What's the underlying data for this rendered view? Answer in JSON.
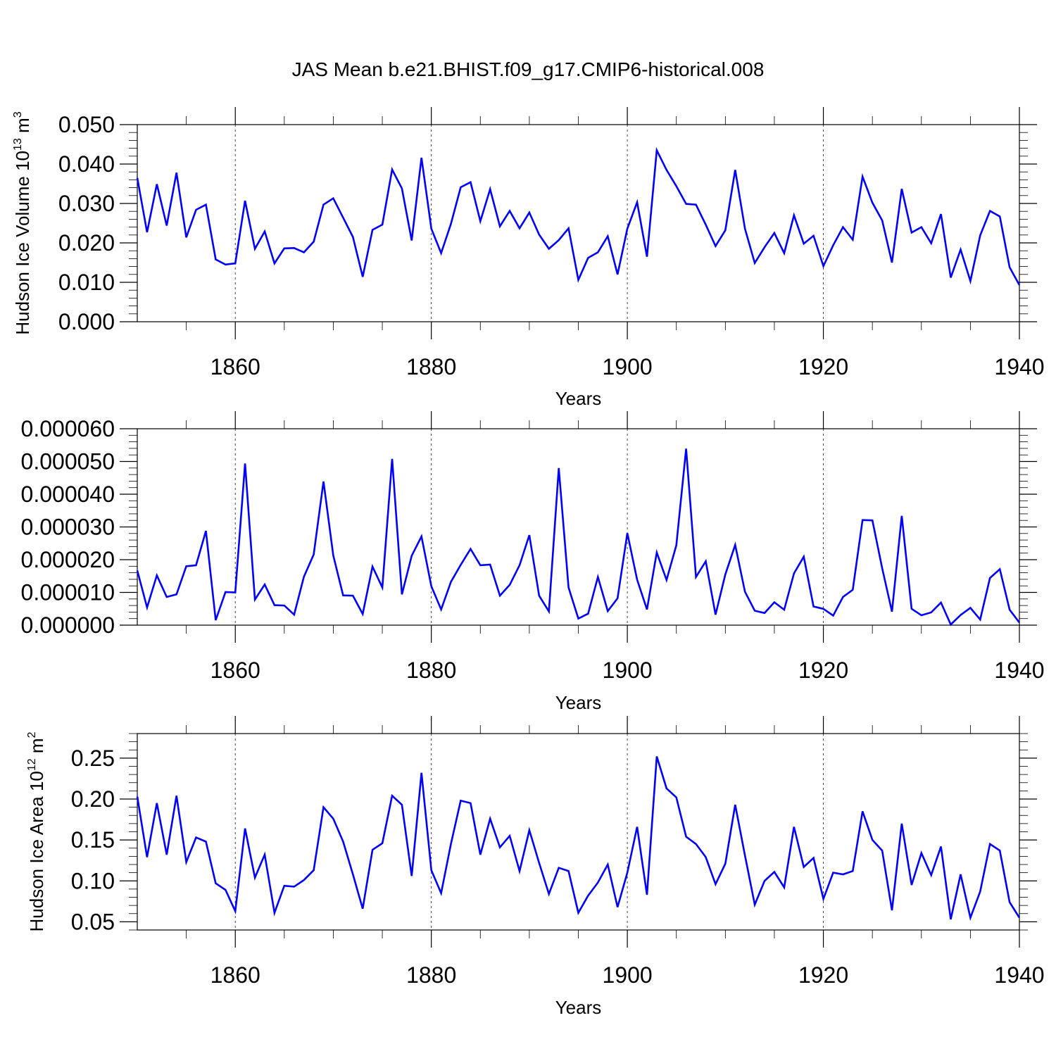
{
  "chart_data": {
    "title": "JAS Mean b.e21.BHIST.f09_g17.CMIP6-historical.008",
    "colors": {
      "line": "#0000ff",
      "frame": "#000000"
    },
    "panels": [
      {
        "type": "line",
        "ylabel": "Hudson Ice Volume 10",
        "ylabel_sup": "13",
        "ylabel_unit": " m",
        "ylabel_unit_sup": "3",
        "xlabel": "Years",
        "xlim": [
          1850,
          1940
        ],
        "ylim": [
          0.0,
          0.05
        ],
        "xticks": [
          1860,
          1880,
          1900,
          1920,
          1940
        ],
        "xtick_labels": [
          "1860",
          "1880",
          "1900",
          "1920",
          "1940"
        ],
        "yticks": [
          0.0,
          0.01,
          0.02,
          0.03,
          0.04,
          0.05
        ],
        "ytick_labels": [
          "0.000",
          "0.010",
          "0.020",
          "0.030",
          "0.040",
          "0.050"
        ],
        "x_start": 1850,
        "values": [
          0.0365,
          0.0227,
          0.0349,
          0.0244,
          0.0378,
          0.0214,
          0.0284,
          0.0297,
          0.0158,
          0.0145,
          0.0148,
          0.0307,
          0.0185,
          0.0229,
          0.0148,
          0.0186,
          0.0187,
          0.0176,
          0.0203,
          0.0297,
          0.0313,
          0.0264,
          0.0215,
          0.0114,
          0.0233,
          0.0246,
          0.0386,
          0.0338,
          0.0206,
          0.0416,
          0.0236,
          0.0174,
          0.0248,
          0.0341,
          0.0354,
          0.0255,
          0.0336,
          0.0242,
          0.0281,
          0.0237,
          0.0277,
          0.0221,
          0.0185,
          0.0207,
          0.0237,
          0.0106,
          0.0162,
          0.0176,
          0.0217,
          0.012,
          0.0236,
          0.0303,
          0.0165,
          0.0435,
          0.0385,
          0.0344,
          0.0299,
          0.0297,
          0.0246,
          0.0192,
          0.0232,
          0.0385,
          0.0236,
          0.0149,
          0.0189,
          0.0225,
          0.0174,
          0.027,
          0.0198,
          0.0218,
          0.0141,
          0.0194,
          0.024,
          0.0208,
          0.0368,
          0.0302,
          0.0257,
          0.015,
          0.0337,
          0.0226,
          0.024,
          0.0199,
          0.0273,
          0.0112,
          0.0183,
          0.0103,
          0.0219,
          0.0281,
          0.0267,
          0.0138,
          0.0093
        ]
      },
      {
        "type": "line",
        "ylabel": "",
        "xlabel": "Years",
        "xlim": [
          1850,
          1940
        ],
        "ylim": [
          0.0,
          6e-05
        ],
        "xticks": [
          1860,
          1880,
          1900,
          1920,
          1940
        ],
        "xtick_labels": [
          "1860",
          "1880",
          "1900",
          "1920",
          "1940"
        ],
        "yticks": [
          0.0,
          1e-05,
          2e-05,
          3e-05,
          4e-05,
          5e-05,
          6e-05
        ],
        "ytick_labels": [
          "0.000000",
          "0.000010",
          "0.000020",
          "0.000030",
          "0.000040",
          "0.000050",
          "0.000060"
        ],
        "x_start": 1850,
        "values": [
          1.67e-05,
          5.4e-06,
          1.52e-05,
          8.6e-06,
          9.4e-06,
          1.8e-05,
          1.83e-05,
          2.88e-05,
          1.5e-06,
          1.01e-05,
          1e-05,
          4.94e-05,
          7.8e-06,
          1.24e-05,
          6.1e-06,
          6e-06,
          3.2e-06,
          1.48e-05,
          2.16e-05,
          4.39e-05,
          2.13e-05,
          9.1e-06,
          9e-06,
          3.4e-06,
          1.79e-05,
          1.15e-05,
          5.08e-05,
          9.4e-06,
          2.12e-05,
          2.71e-05,
          1.19e-05,
          4.8e-06,
          1.32e-05,
          1.84e-05,
          2.33e-05,
          1.83e-05,
          1.85e-05,
          9e-06,
          1.23e-05,
          1.83e-05,
          2.75e-05,
          9e-06,
          4.2e-06,
          4.8e-05,
          1.15e-05,
          2e-06,
          3.5e-06,
          1.47e-05,
          4.3e-06,
          8.2e-06,
          2.81e-05,
          1.39e-05,
          4.8e-06,
          2.22e-05,
          1.38e-05,
          2.44e-05,
          5.39e-05,
          1.47e-05,
          1.95e-05,
          3.2e-06,
          1.55e-05,
          2.45e-05,
          1.02e-05,
          4.4e-06,
          3.7e-06,
          7e-06,
          4.7e-06,
          1.58e-05,
          2.09e-05,
          5.7e-06,
          5e-06,
          2.9e-06,
          8.6e-06,
          1.08e-05,
          3.21e-05,
          3.2e-05,
          1.74e-05,
          4.1e-06,
          3.34e-05,
          5e-06,
          3e-06,
          3.9e-06,
          6.9e-06,
          2e-07,
          3.1e-06,
          5.3e-06,
          1.7e-06,
          1.44e-05,
          1.71e-05,
          4.7e-06,
          8e-07
        ]
      },
      {
        "type": "line",
        "ylabel": "Hudson Ice Area 10",
        "ylabel_sup": "12",
        "ylabel_unit": " m",
        "ylabel_unit_sup": "2",
        "xlabel": "Years",
        "xlim": [
          1850,
          1940
        ],
        "ylim": [
          0.04,
          0.28
        ],
        "xticks": [
          1860,
          1880,
          1900,
          1920,
          1940
        ],
        "xtick_labels": [
          "1860",
          "1880",
          "1900",
          "1920",
          "1940"
        ],
        "yticks": [
          0.05,
          0.1,
          0.15,
          0.2,
          0.25
        ],
        "ytick_labels": [
          "0.05",
          "0.10",
          "0.15",
          "0.20",
          "0.25"
        ],
        "x_start": 1850,
        "values": [
          0.203,
          0.129,
          0.195,
          0.132,
          0.204,
          0.123,
          0.153,
          0.148,
          0.097,
          0.089,
          0.063,
          0.164,
          0.104,
          0.132,
          0.061,
          0.094,
          0.093,
          0.101,
          0.113,
          0.19,
          0.176,
          0.148,
          0.108,
          0.066,
          0.138,
          0.146,
          0.204,
          0.193,
          0.106,
          0.232,
          0.113,
          0.085,
          0.145,
          0.198,
          0.195,
          0.132,
          0.176,
          0.141,
          0.155,
          0.112,
          0.162,
          0.122,
          0.084,
          0.116,
          0.112,
          0.061,
          0.082,
          0.098,
          0.12,
          0.068,
          0.11,
          0.166,
          0.083,
          0.252,
          0.213,
          0.202,
          0.154,
          0.145,
          0.129,
          0.096,
          0.121,
          0.193,
          0.131,
          0.071,
          0.1,
          0.111,
          0.092,
          0.166,
          0.117,
          0.128,
          0.078,
          0.11,
          0.108,
          0.112,
          0.185,
          0.15,
          0.137,
          0.064,
          0.17,
          0.095,
          0.134,
          0.107,
          0.142,
          0.053,
          0.108,
          0.055,
          0.087,
          0.145,
          0.137,
          0.074,
          0.055
        ]
      }
    ]
  }
}
